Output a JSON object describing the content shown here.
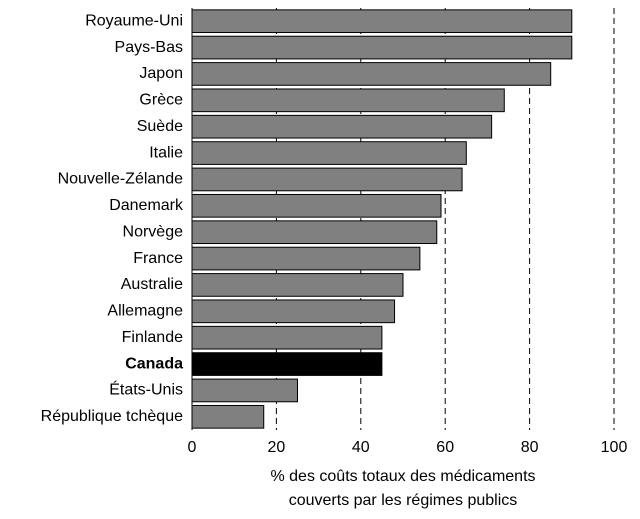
{
  "chart_data": {
    "type": "hbar",
    "categories": [
      "Royaume-Uni",
      "Pays-Bas",
      "Japon",
      "Grèce",
      "Suède",
      "Italie",
      "Nouvelle-Zélande",
      "Danemark",
      "Norvège",
      "France",
      "Australie",
      "Allemagne",
      "Finlande",
      "Canada",
      "États-Unis",
      "République tchèque"
    ],
    "values": [
      90,
      90,
      85,
      74,
      71,
      65,
      64,
      59,
      58,
      54,
      50,
      48,
      45,
      45,
      25,
      17
    ],
    "color": "#808080",
    "highlight_color": "#000000",
    "highlight_index": 13,
    "xlim": [
      0,
      100
    ],
    "xticks": [
      0,
      20,
      40,
      60,
      80,
      100
    ],
    "grid": true,
    "xlabel": [
      "% des coûts totaux des médicaments",
      "couverts par les régimes publics"
    ]
  }
}
